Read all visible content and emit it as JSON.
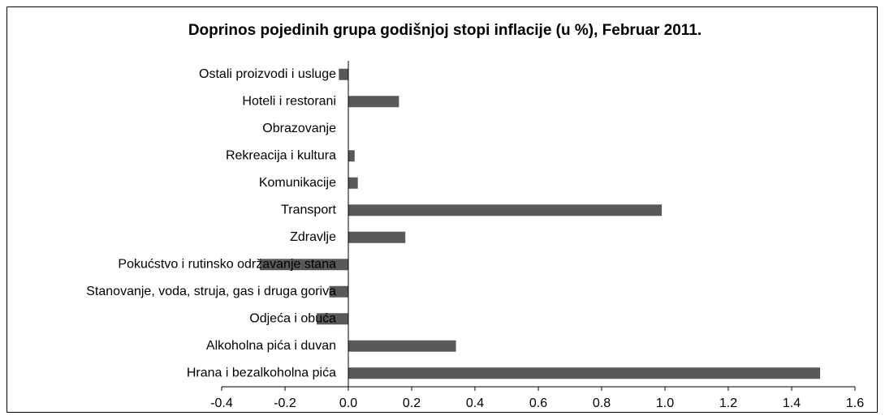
{
  "chart_data": {
    "type": "bar",
    "orientation": "horizontal",
    "title": "Doprinos pojedinih grupa godišnjoj stopi inflacije (u %), Februar 2011.",
    "categories": [
      "Ostali proizvodi i usluge",
      "Hoteli i restorani",
      "Obrazovanje",
      "Rekreacija i kultura",
      "Komunikacije",
      "Transport",
      "Zdravlje",
      "Pokućstvo i rutinsko održavanje stana",
      "Stanovanje, voda, struja, gas i druga goriva",
      "Odjeća i obuća",
      "Alkoholna pića i duvan",
      "Hrana i bezalkoholna pića"
    ],
    "values": [
      -0.03,
      0.16,
      0,
      0.02,
      0.03,
      0.99,
      0.18,
      -0.28,
      -0.06,
      -0.1,
      0.34,
      1.49
    ],
    "color": "#595959",
    "xlim": [
      -0.4,
      1.6
    ],
    "xticks": [
      -0.4,
      -0.2,
      {
        "value": 0,
        "label": "0.0"
      },
      0.2,
      0.4,
      0.6,
      0.8,
      {
        "value": 1,
        "label": "1.0"
      },
      1.2,
      1.4,
      1.6
    ],
    "grid": false
  }
}
